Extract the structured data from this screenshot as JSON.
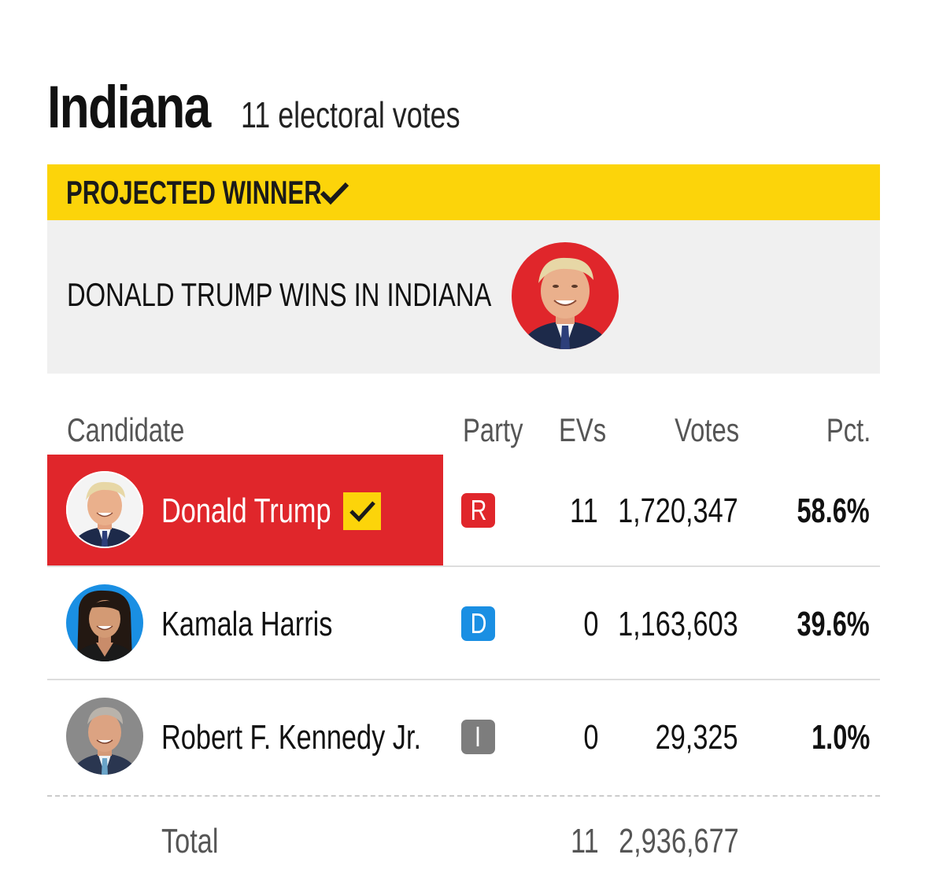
{
  "header": {
    "state_name": "Indiana",
    "electoral_votes_text": "11 electoral votes"
  },
  "winner_banner": {
    "label": "PROJECTED WINNER",
    "headline": "DONALD TRUMP WINS IN INDIANA",
    "check_icon": "checkmark-icon",
    "banner_color": "#fcd40a",
    "photo_icon": "candidate-photo-trump"
  },
  "table": {
    "headers": {
      "candidate": "Candidate",
      "party": "Party",
      "evs": "EVs",
      "votes": "Votes",
      "pct": "Pct."
    },
    "rows": [
      {
        "name": "Donald Trump",
        "party": "R",
        "party_color": "#e0262b",
        "evs": "11",
        "votes": "1,720,347",
        "pct": "58.6%",
        "winner": true,
        "avatar_icon": "candidate-photo-trump"
      },
      {
        "name": "Kamala Harris",
        "party": "D",
        "party_color": "#1a8fe3",
        "evs": "0",
        "votes": "1,163,603",
        "pct": "39.6%",
        "winner": false,
        "avatar_icon": "candidate-photo-harris"
      },
      {
        "name": "Robert F. Kennedy Jr.",
        "party": "I",
        "party_color": "#7d7d7d",
        "evs": "0",
        "votes": "29,325",
        "pct": "1.0%",
        "winner": false,
        "avatar_icon": "candidate-photo-kennedy"
      }
    ],
    "total": {
      "label": "Total",
      "evs": "11",
      "votes": "2,936,677"
    }
  },
  "colors": {
    "republican": "#e0262b",
    "democrat": "#1a8fe3",
    "independent": "#7d7d7d",
    "highlight": "#fcd40a"
  }
}
